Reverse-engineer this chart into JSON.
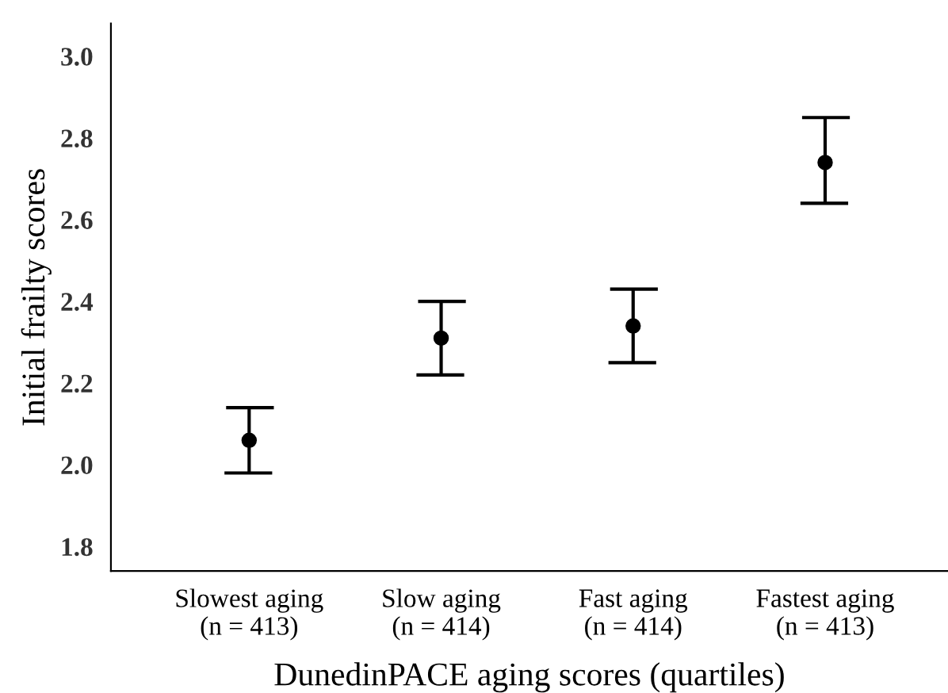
{
  "chart_data": {
    "type": "scatter",
    "xlabel": "DunedinPACE aging scores (quartiles)",
    "ylabel": "Initial frailty scores",
    "categories": [
      "Slowest aging\n(n = 413)",
      "Slow aging\n(n = 414)",
      "Fast aging\n(n = 414)",
      "Fastest aging\n(n = 413)"
    ],
    "values": [
      2.06,
      2.31,
      2.34,
      2.74
    ],
    "errors": [
      [
        1.98,
        2.14
      ],
      [
        2.22,
        2.4
      ],
      [
        2.25,
        2.43
      ],
      [
        2.64,
        2.85
      ]
    ],
    "color": "#000000",
    "ylim": [
      1.74,
      3.08
    ],
    "yticks": [
      {
        "value": 1.8,
        "label": "1.8"
      },
      {
        "value": 2.0,
        "label": "2.0"
      },
      {
        "value": 2.2,
        "label": "2.2"
      },
      {
        "value": 2.4,
        "label": "2.4"
      },
      {
        "value": 2.6,
        "label": "2.6"
      },
      {
        "value": 2.8,
        "label": "2.8"
      },
      {
        "value": 3.0,
        "label": "3.0"
      }
    ],
    "marker": "circle",
    "grid": false,
    "legend": false
  }
}
